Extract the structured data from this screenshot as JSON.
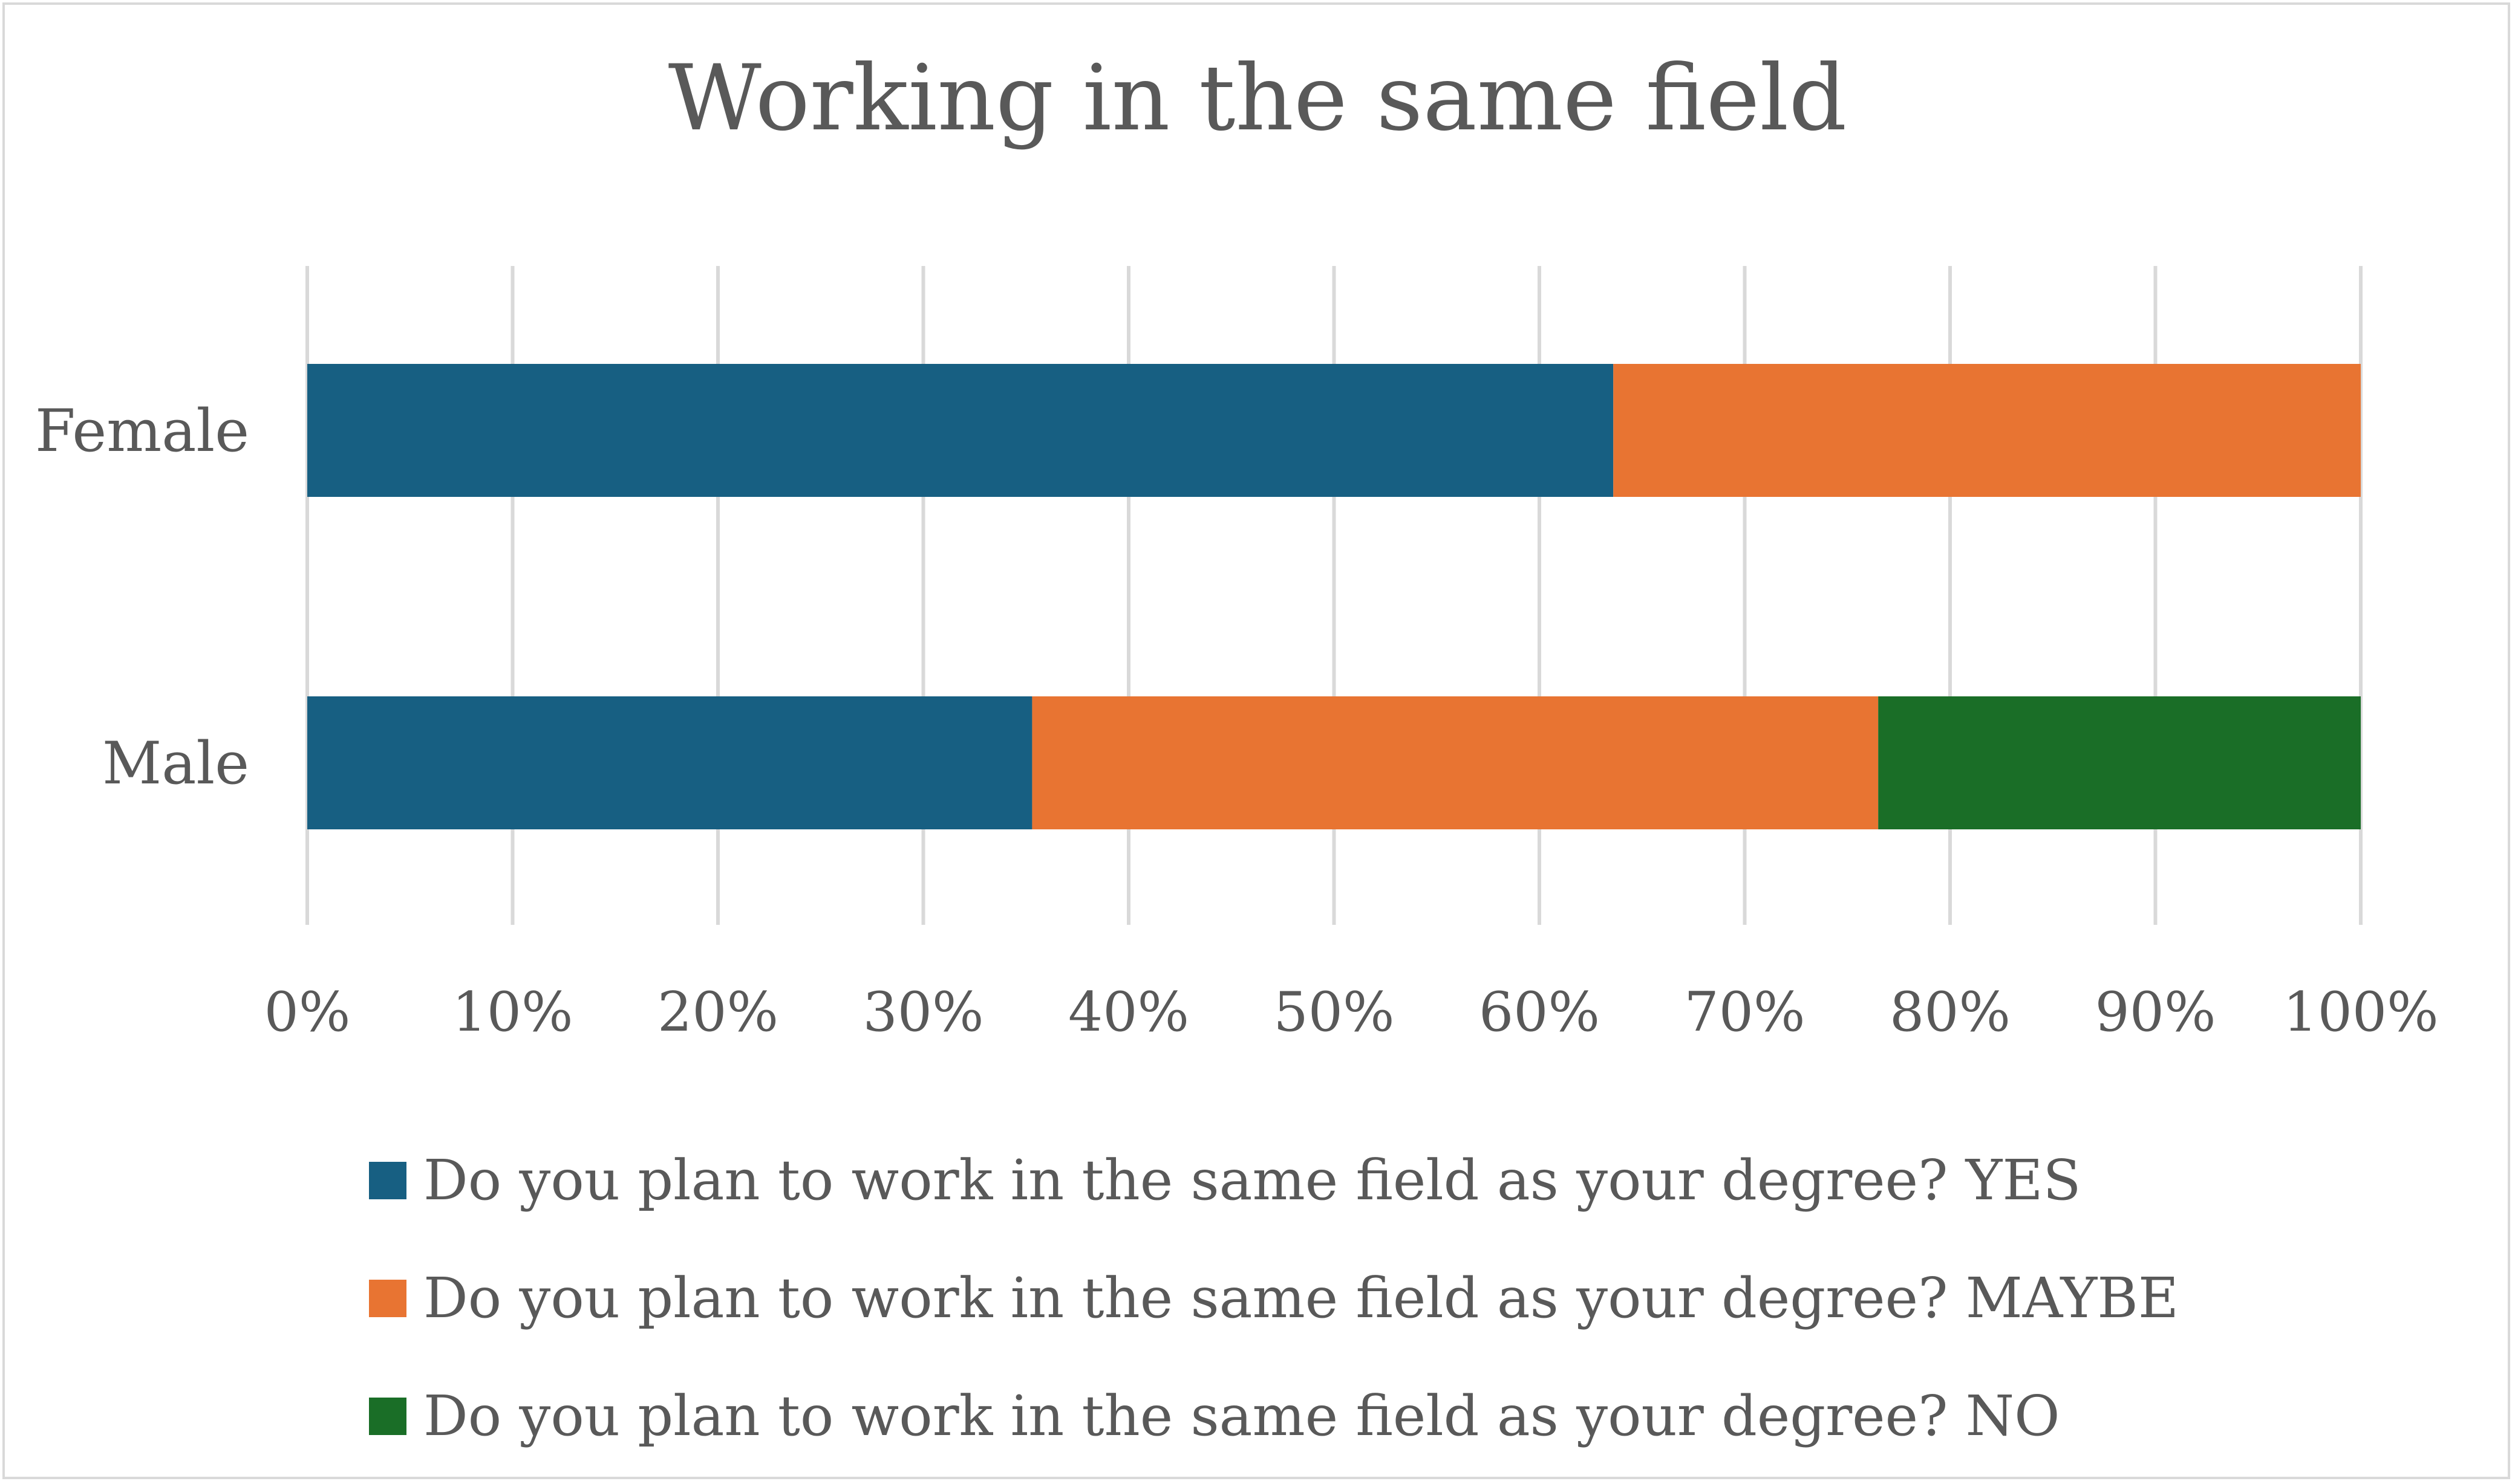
{
  "chart_data": {
    "type": "bar",
    "orientation": "horizontal",
    "stacked": "100%",
    "title": "Working in the same field",
    "categories": [
      "Female",
      "Male"
    ],
    "series": [
      {
        "name": "Do you plan to work in the same field as your degree? YES",
        "color": "#175f82",
        "values": [
          63.6,
          35.3
        ]
      },
      {
        "name": "Do you plan to work in the same field as your degree? MAYBE",
        "color": "#e87432",
        "values": [
          36.4,
          41.2
        ]
      },
      {
        "name": "Do you plan to work in the same field as your degree? NO",
        "color": "#1a6e27",
        "values": [
          0,
          23.5
        ]
      }
    ],
    "xlim": [
      0,
      100
    ],
    "xticks": [
      "0%",
      "10%",
      "20%",
      "30%",
      "40%",
      "50%",
      "60%",
      "70%",
      "80%",
      "90%",
      "100%"
    ],
    "xlabel": "",
    "ylabel": "",
    "grid": "vertical",
    "legend_position": "bottom",
    "gridline_color": "#d9d9d9"
  }
}
